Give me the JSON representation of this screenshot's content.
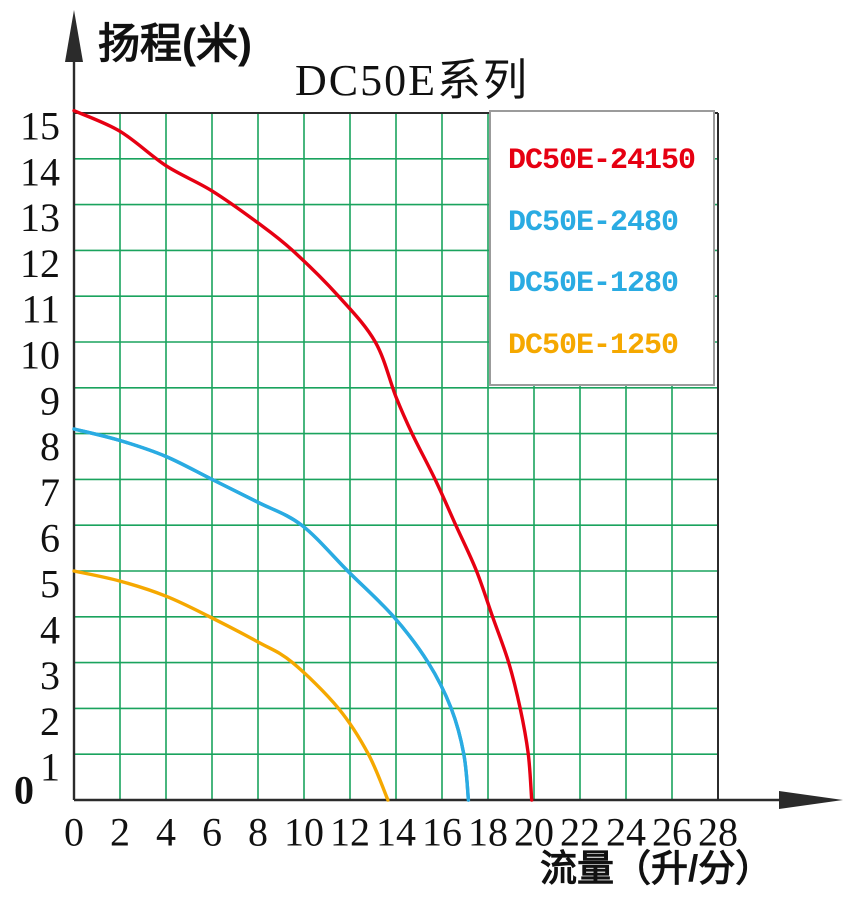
{
  "chart_data": {
    "type": "line",
    "title": "DC50E系列",
    "xlabel": "流量（升/分）",
    "ylabel": "扬程(米)",
    "xlim": [
      0,
      28
    ],
    "ylim": [
      0,
      15
    ],
    "x_ticks": [
      0,
      2,
      4,
      6,
      8,
      10,
      12,
      14,
      16,
      18,
      20,
      22,
      24,
      26,
      28
    ],
    "y_ticks": [
      0,
      1,
      2,
      3,
      4,
      5,
      6,
      7,
      8,
      9,
      10,
      11,
      12,
      13,
      14,
      15
    ],
    "grid": true,
    "grid_color": "#1aa35e",
    "axis_color": "#2b2b2b",
    "tick_color": "#111111",
    "legend_position": "top-right-inside",
    "legend_border_color": "#9b9b9b",
    "note": "DC50E-2480 and DC50E-1280 curves overlap (single visible blue curve)",
    "series": [
      {
        "name": "DC50E-24150",
        "color": "#e60012",
        "points": [
          [
            0,
            15.05
          ],
          [
            2,
            14.6
          ],
          [
            4,
            13.85
          ],
          [
            6,
            13.3
          ],
          [
            8,
            12.6
          ],
          [
            9.5,
            12
          ],
          [
            11.5,
            11
          ],
          [
            13.1,
            10
          ],
          [
            14,
            8.8
          ],
          [
            14.7,
            8
          ],
          [
            15.7,
            7
          ],
          [
            16.6,
            6
          ],
          [
            17.5,
            5
          ],
          [
            18.2,
            4
          ],
          [
            18.9,
            3
          ],
          [
            19.4,
            2
          ],
          [
            19.75,
            1
          ],
          [
            19.9,
            0
          ]
        ]
      },
      {
        "name": "DC50E-2480",
        "color": "#2aabe2",
        "points": [
          [
            0,
            8.1
          ],
          [
            2,
            7.85
          ],
          [
            4,
            7.5
          ],
          [
            6,
            7
          ],
          [
            8,
            6.5
          ],
          [
            9.9,
            6
          ],
          [
            11.9,
            5
          ],
          [
            13.9,
            4
          ],
          [
            15.4,
            3
          ],
          [
            16.4,
            2
          ],
          [
            16.95,
            1
          ],
          [
            17.15,
            0
          ]
        ]
      },
      {
        "name": "DC50E-1280",
        "color": "#2aabe2",
        "points": [
          [
            0,
            8.1
          ],
          [
            2,
            7.85
          ],
          [
            4,
            7.5
          ],
          [
            6,
            7
          ],
          [
            8,
            6.5
          ],
          [
            9.9,
            6
          ],
          [
            11.9,
            5
          ],
          [
            13.9,
            4
          ],
          [
            15.4,
            3
          ],
          [
            16.4,
            2
          ],
          [
            16.95,
            1
          ],
          [
            17.15,
            0
          ]
        ]
      },
      {
        "name": "DC50E-1250",
        "color": "#f5a800",
        "points": [
          [
            0,
            5.0
          ],
          [
            2,
            4.78
          ],
          [
            4,
            4.45
          ],
          [
            5.9,
            4
          ],
          [
            8,
            3.45
          ],
          [
            9.5,
            3
          ],
          [
            11.5,
            2
          ],
          [
            12.8,
            1
          ],
          [
            13.65,
            0
          ]
        ]
      }
    ]
  }
}
